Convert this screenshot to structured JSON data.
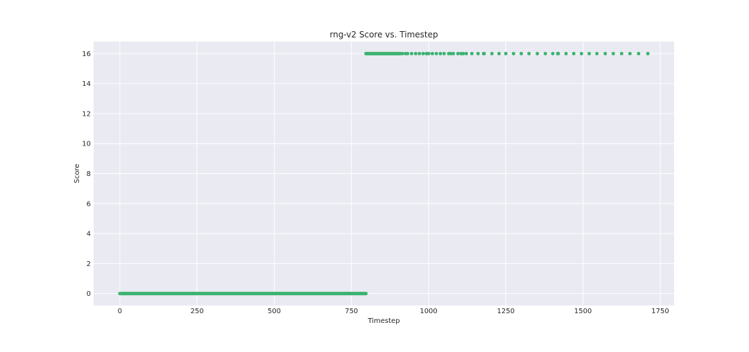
{
  "chart_data": {
    "type": "scatter",
    "title": "rng-v2 Score vs. Timestep",
    "xlabel": "Timestep",
    "ylabel": "Score",
    "xlim": [
      -85,
      1795
    ],
    "ylim": [
      -0.8,
      16.8
    ],
    "xticks": [
      0,
      250,
      500,
      750,
      1000,
      1250,
      1500,
      1750
    ],
    "yticks": [
      0,
      2,
      4,
      6,
      8,
      10,
      12,
      14,
      16
    ],
    "grid": true,
    "legend": "none",
    "colors": {
      "background": "#eaeaf2",
      "grid": "#ffffff",
      "marker": "#3cb371"
    },
    "series": [
      {
        "x_range": [
          0,
          797
        ],
        "y": 0,
        "note_points": "dense run of points at every timestep from 0 to 797"
      },
      {
        "x_range": [
          797,
          908
        ],
        "y": 16,
        "note_points": "dense run of points at every timestep from 797 to 908"
      },
      {
        "y": 16,
        "x": [
          915,
          925,
          932,
          945,
          958,
          970,
          982,
          993,
          1000,
          1012,
          1025,
          1038,
          1050,
          1065,
          1072,
          1080,
          1095,
          1105,
          1112,
          1122,
          1140,
          1160,
          1178,
          1180,
          1205,
          1228,
          1250,
          1275,
          1300,
          1325,
          1352,
          1378,
          1402,
          1418,
          1420,
          1445,
          1470,
          1495,
          1520,
          1545,
          1572,
          1598,
          1625,
          1652,
          1680,
          1710
        ]
      }
    ]
  }
}
